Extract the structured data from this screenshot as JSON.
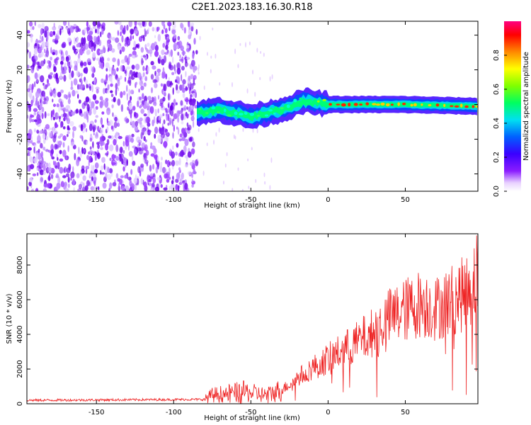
{
  "title": "C2E1.2023.183.16.30.R18",
  "colors": {
    "snr_line": "#ee2222",
    "noise": "#7a1cf0"
  },
  "chart_data": [
    {
      "type": "heatmap",
      "xlabel": "Height of straight line (km)",
      "ylabel": "Frequency (Hz)",
      "xlim": [
        -195,
        97
      ],
      "ylim": [
        -50,
        48
      ],
      "xticks": [
        -150,
        -100,
        -50,
        0,
        50
      ],
      "yticks": [
        -40,
        -20,
        0,
        20,
        40
      ],
      "colorbar": {
        "label": "Normalized spectral amplitude",
        "range": [
          0,
          1
        ],
        "ticks": [
          0.0,
          0.2,
          0.4,
          0.6,
          0.8
        ],
        "tick_labels": [
          "0.0",
          "0.2",
          "0.4",
          "0.6",
          "0.8"
        ],
        "colormap": "rainbow (white → violet → blue → cyan → green → yellow → orange → red → magenta)"
      },
      "features": {
        "noise_region_x": [
          -195,
          -85
        ],
        "signal_start_x": -85,
        "signal_freq_trend": [
          {
            "x": -85,
            "y": -5
          },
          {
            "x": -70,
            "y": -3
          },
          {
            "x": -50,
            "y": -7
          },
          {
            "x": -30,
            "y": -3
          },
          {
            "x": -15,
            "y": 2
          },
          {
            "x": 0,
            "y": 0
          },
          {
            "x": 50,
            "y": 0
          },
          {
            "x": 95,
            "y": -1
          }
        ]
      }
    },
    {
      "type": "line",
      "xlabel": "Height of straight line (km)",
      "ylabel": "SNR (10 * v/v)",
      "xlim": [
        -195,
        97
      ],
      "ylim": [
        0,
        9800
      ],
      "xticks": [
        -150,
        -100,
        -50,
        0,
        50
      ],
      "yticks": [
        0,
        2000,
        4000,
        6000,
        8000
      ],
      "trend": [
        {
          "x": -195,
          "y": 200
        },
        {
          "x": -80,
          "y": 250
        },
        {
          "x": -75,
          "y": 500
        },
        {
          "x": -55,
          "y": 700
        },
        {
          "x": -40,
          "y": 500
        },
        {
          "x": -30,
          "y": 800
        },
        {
          "x": -15,
          "y": 1800
        },
        {
          "x": 0,
          "y": 2600
        },
        {
          "x": 10,
          "y": 3100
        },
        {
          "x": 20,
          "y": 3600
        },
        {
          "x": 30,
          "y": 4200
        },
        {
          "x": 40,
          "y": 5000
        },
        {
          "x": 50,
          "y": 5400
        },
        {
          "x": 60,
          "y": 5800
        },
        {
          "x": 70,
          "y": 5500
        },
        {
          "x": 80,
          "y": 6000
        },
        {
          "x": 90,
          "y": 6400
        },
        {
          "x": 97,
          "y": 7600
        }
      ]
    }
  ]
}
